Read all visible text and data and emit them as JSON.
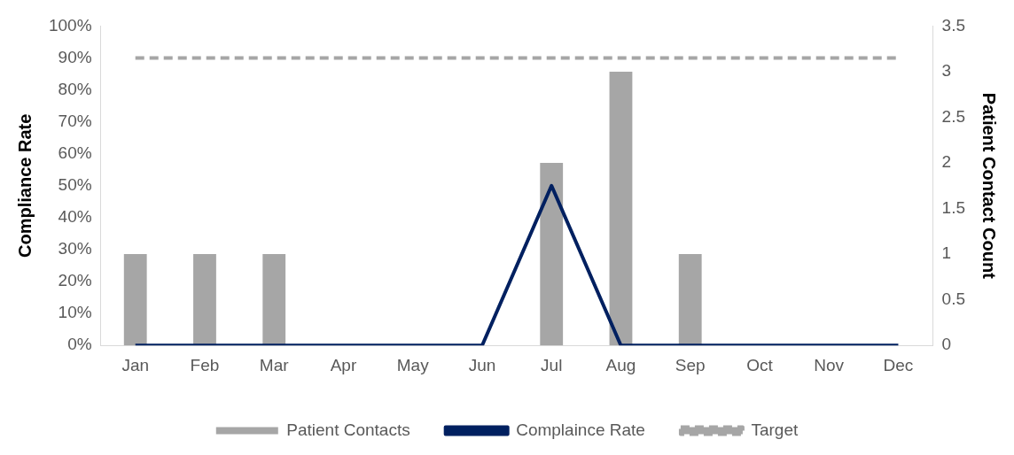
{
  "chart_data": {
    "type": "bar",
    "categories": [
      "Jan",
      "Feb",
      "Mar",
      "Apr",
      "May",
      "Jun",
      "Jul",
      "Aug",
      "Sep",
      "Oct",
      "Nov",
      "Dec"
    ],
    "ylabel": "Compliance Rate",
    "y2label": "Patient Contact Count",
    "ylim": [
      0,
      1
    ],
    "yticks": [
      {
        "value": 0,
        "label": "0%"
      },
      {
        "value": 0.1,
        "label": "10%"
      },
      {
        "value": 0.2,
        "label": "20%"
      },
      {
        "value": 0.3,
        "label": "30%"
      },
      {
        "value": 0.4,
        "label": "40%"
      },
      {
        "value": 0.5,
        "label": "50%"
      },
      {
        "value": 0.6,
        "label": "60%"
      },
      {
        "value": 0.7,
        "label": "70%"
      },
      {
        "value": 0.8,
        "label": "80%"
      },
      {
        "value": 0.9,
        "label": "90%"
      },
      {
        "value": 1,
        "label": "100%"
      }
    ],
    "y2lim": [
      0,
      3.5
    ],
    "y2ticks": [
      0,
      0.5,
      1,
      1.5,
      2,
      2.5,
      3,
      3.5
    ],
    "legend": "bottom",
    "marker": "none",
    "series": [
      {
        "name": "Patient Contacts",
        "axis": "y2",
        "color": "#a6a6a6",
        "values": [
          1,
          1,
          1,
          0,
          0,
          0,
          2,
          3,
          1,
          0,
          0,
          0
        ]
      },
      {
        "name": "Complaince Rate",
        "type": "line",
        "color": "#002060",
        "line_style": "solid",
        "values": [
          0,
          0,
          0,
          0,
          0,
          0,
          0.5,
          0,
          0,
          0,
          0,
          0
        ]
      },
      {
        "name": "Target",
        "type": "line",
        "color": "#a6a6a6",
        "line_style": "dashed",
        "values": [
          0.9,
          0.9,
          0.9,
          0.9,
          0.9,
          0.9,
          0.9,
          0.9,
          0.9,
          0.9,
          0.9,
          0.9
        ]
      }
    ]
  }
}
